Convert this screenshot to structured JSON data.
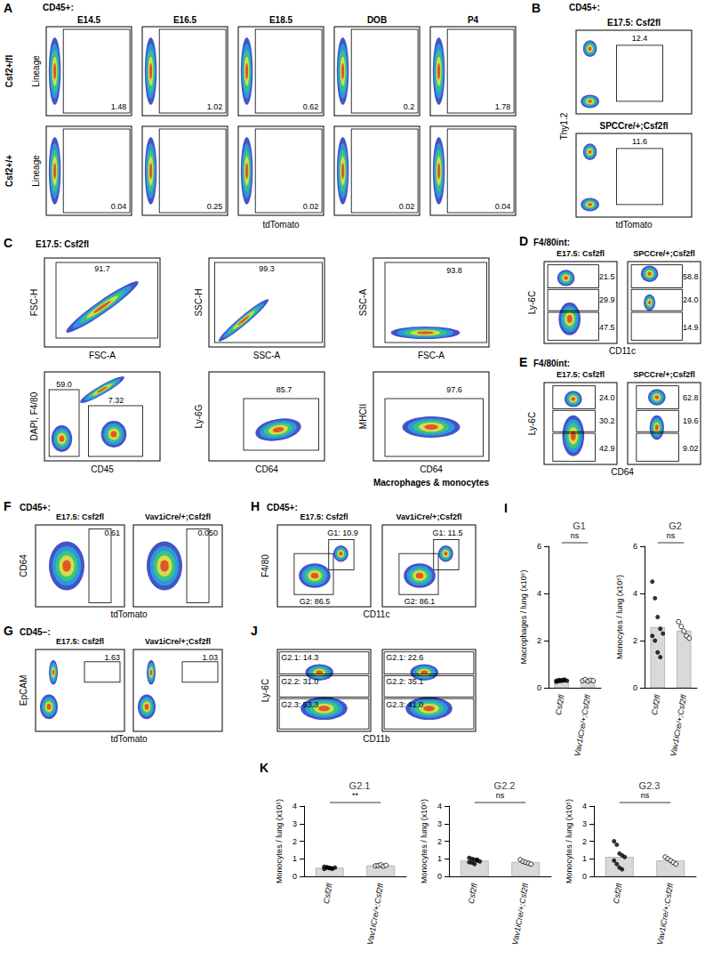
{
  "flow": [
    {
      "panel": "A",
      "header": "CD45+:",
      "columns": [
        "E14.5",
        "E16.5",
        "E18.5",
        "DOB",
        "P4"
      ],
      "rows": [
        "Csf2+/fl",
        "Csf2+/+"
      ],
      "x_label": "tdTomato",
      "y_label": "Lineage",
      "gates": [
        [
          "1.48",
          "1.02",
          "0.62",
          "0.2",
          "1.78"
        ],
        [
          "0.04",
          "0.25",
          "0.02",
          "0.02",
          "0.04"
        ]
      ]
    },
    {
      "panel": "B",
      "header": "CD45+:",
      "x_label": "tdTomato",
      "y_label": "Thy1.2",
      "plots": [
        {
          "title": "E17.5: Csf2fl",
          "gates": [
            "12.4"
          ]
        },
        {
          "title": "SPCCre/+;Csf2fl",
          "gates": [
            "11.6"
          ]
        }
      ]
    },
    {
      "panel": "C",
      "header": "E17.5: Csf2fl",
      "note": "Macrophages & monocytes",
      "plots": [
        {
          "x_label": "FSC-A",
          "y_label": "FSC-H",
          "gates": [
            "91.7"
          ]
        },
        {
          "x_label": "SSC-A",
          "y_label": "SSC-H",
          "gates": [
            "99.3"
          ]
        },
        {
          "x_label": "FSC-A",
          "y_label": "SSC-A",
          "gates": [
            "93.8"
          ]
        },
        {
          "x_label": "CD45",
          "y_label": "DAPI, F4/80",
          "gates": [
            "59.0",
            "7.32"
          ]
        },
        {
          "x_label": "CD64",
          "y_label": "Ly-6G",
          "gates": [
            "85.7"
          ]
        },
        {
          "x_label": "CD64",
          "y_label": "MHCII",
          "gates": [
            "97.6"
          ]
        }
      ]
    },
    {
      "panel": "D",
      "header": "F4/80int:",
      "x_label": "CD11c",
      "y_label": "Ly-6C",
      "plots": [
        {
          "title": "E17.5: Csf2fl",
          "gates": [
            "21.5",
            "29.9",
            "47.5"
          ]
        },
        {
          "title": "SPCCre/+;Csf2fl",
          "gates": [
            "58.8",
            "24.0",
            "14.9"
          ]
        }
      ]
    },
    {
      "panel": "E",
      "header": "F4/80int:",
      "x_label": "CD64",
      "y_label": "Ly-6C",
      "plots": [
        {
          "title": "E17.5: Csf2fl",
          "gates": [
            "24.0",
            "30.2",
            "42.9"
          ]
        },
        {
          "title": "SPCCre/+;Csf2fl",
          "gates": [
            "62.8",
            "19.6",
            "9.02"
          ]
        }
      ]
    },
    {
      "panel": "F",
      "header": "CD45+:",
      "x_label": "tdTomato",
      "y_label": "CD64",
      "plots": [
        {
          "title": "E17.5: Csf2fl",
          "gates": [
            "0.61"
          ]
        },
        {
          "title": "Vav1iCre/+;Csf2fl",
          "gates": [
            "0.050"
          ]
        }
      ]
    },
    {
      "panel": "G",
      "header": "CD45−:",
      "x_label": "tdTomato",
      "y_label": "EpCAM",
      "plots": [
        {
          "title": "E17.5: Csf2fl",
          "gates": [
            "1.63"
          ]
        },
        {
          "title": "Vav1iCre/+;Csf2fl",
          "gates": [
            "1.03"
          ]
        }
      ]
    },
    {
      "panel": "H",
      "header": "CD45+:",
      "x_label": "CD11c",
      "y_label": "F4/80",
      "plots": [
        {
          "title": "E17.5: Csf2fl",
          "gates": [
            "G1: 10.9",
            "G2: 86.5"
          ]
        },
        {
          "title": "Vav1iCre/+;Csf2fl",
          "gates": [
            "G1: 11.5",
            "G2: 86.1"
          ]
        }
      ]
    },
    {
      "panel": "J",
      "x_label": "CD11b",
      "y_label": "Ly-6C",
      "plots": [
        {
          "gates": [
            "G2.1: 14.3",
            "G2.2: 31.0",
            "G2.3: 53.3"
          ]
        },
        {
          "gates": [
            "G2.1: 22.6",
            "G2.2: 35.1",
            "G2.3: 41.0"
          ]
        }
      ]
    }
  ],
  "chart_data": [
    {
      "type": "bar",
      "panel": "I",
      "title": "G1",
      "ylabel": "Macrophages / lung (x10⁵)",
      "categories": [
        "Csf2fl",
        "Vav1iCre/+;Csf2fl"
      ],
      "values": [
        0.3,
        0.31
      ],
      "points": [
        [
          0.3,
          0.28,
          0.32,
          0.35,
          0.3,
          0.25,
          0.33,
          0.29,
          0.31
        ],
        [
          0.3,
          0.35,
          0.28,
          0.32,
          0.3
        ]
      ],
      "color": "#d9d9d9",
      "ylim": [
        0,
        6
      ],
      "yticks": [
        0,
        2,
        4,
        6
      ],
      "annotation": "ns"
    },
    {
      "type": "bar",
      "title": "G2",
      "ylabel": "Monocytes / lung (x10⁵)",
      "categories": [
        "Csf2fl",
        "Vav1iCre/+;Csf2fl"
      ],
      "values": [
        2.57,
        2.42
      ],
      "points": [
        [
          4.5,
          3.8,
          3.0,
          2.5,
          2.3,
          2.2,
          2.0,
          1.5,
          1.3
        ],
        [
          2.8,
          2.6,
          2.4,
          2.2,
          2.1
        ]
      ],
      "color": "#d9d9d9",
      "ylim": [
        0,
        6
      ],
      "yticks": [
        0,
        2,
        4,
        6
      ],
      "annotation": "ns"
    },
    {
      "type": "bar",
      "panel": "K",
      "title": "G2.1",
      "ylabel": "Monocytes / lung (x10⁵)",
      "categories": [
        "Csf2fl",
        "Vav1iCre/+;Csf2fl"
      ],
      "values": [
        0.48,
        0.62
      ],
      "points": [
        [
          0.55,
          0.5,
          0.48,
          0.45,
          0.5,
          0.42,
          0.52,
          0.47,
          0.44
        ],
        [
          0.6,
          0.62,
          0.65,
          0.58,
          0.63
        ]
      ],
      "color": "#d9d9d9",
      "ylim": [
        0,
        4
      ],
      "yticks": [
        0,
        1,
        2,
        3,
        4
      ],
      "annotation": "**"
    },
    {
      "type": "bar",
      "title": "G2.2",
      "ylabel": "Monocytes / lung (x10⁵)",
      "categories": [
        "Csf2fl",
        "Vav1iCre/+;Csf2fl"
      ],
      "values": [
        0.89,
        0.81
      ],
      "points": [
        [
          1.05,
          1.0,
          0.95,
          0.9,
          0.85,
          0.8,
          0.78,
          0.7,
          0.95
        ],
        [
          0.95,
          0.85,
          0.8,
          0.75,
          0.7
        ]
      ],
      "color": "#d9d9d9",
      "ylim": [
        0,
        4
      ],
      "yticks": [
        0,
        1,
        2,
        3,
        4
      ],
      "annotation": "ns"
    },
    {
      "type": "bar",
      "title": "G2.3",
      "ylabel": "Monocytes / lung (x10⁵)",
      "categories": [
        "Csf2fl",
        "Vav1iCre/+;Csf2fl"
      ],
      "values": [
        1.1,
        0.9
      ],
      "points": [
        [
          2.0,
          1.8,
          1.3,
          1.2,
          1.1,
          0.9,
          0.7,
          0.5,
          0.4
        ],
        [
          1.1,
          1.0,
          0.9,
          0.8,
          0.7
        ]
      ],
      "color": "#d9d9d9",
      "ylim": [
        0,
        4
      ],
      "yticks": [
        0,
        1,
        2,
        3,
        4
      ],
      "annotation": "ns"
    }
  ]
}
